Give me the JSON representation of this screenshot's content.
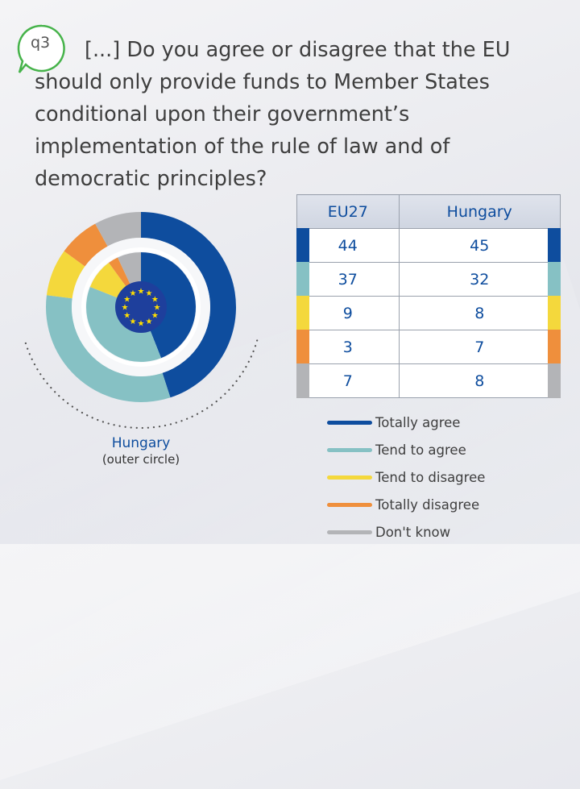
{
  "question": {
    "badge": "q3",
    "text": "[...] Do you agree or disagree that the EU should only provide funds to Member States conditional upon their government’s implementation of the rule of law and of democratic principles?"
  },
  "caption": {
    "country": "Hungary",
    "note": "(outer circle)"
  },
  "table": {
    "headers": [
      "EU27",
      "Hungary"
    ],
    "rows": [
      {
        "eu27": "44",
        "hungary": "45"
      },
      {
        "eu27": "37",
        "hungary": "32"
      },
      {
        "eu27": "9",
        "hungary": "8"
      },
      {
        "eu27": "3",
        "hungary": "7"
      },
      {
        "eu27": "7",
        "hungary": "8"
      }
    ]
  },
  "legend": [
    "Totally agree",
    "Tend to agree",
    "Tend to disagree",
    "Totally disagree",
    "Don't know"
  ],
  "colors": {
    "totally_agree": "#0e4d9e",
    "tend_to_agree": "#86c1c4",
    "tend_to_disagree": "#f4d83c",
    "totally_disagree": "#ef8f3c",
    "dont_know": "#b3b4b7",
    "eu_flag": "#1e3f9c",
    "eu_star": "#ffde00",
    "bubble": "#46b34a"
  },
  "chart_data": {
    "type": "pie",
    "variant": "double-donut",
    "categories": [
      "Totally agree",
      "Tend to agree",
      "Tend to disagree",
      "Totally disagree",
      "Don't know"
    ],
    "series": [
      {
        "name": "EU27",
        "ring": "inner",
        "values": [
          44,
          37,
          9,
          3,
          7
        ]
      },
      {
        "name": "Hungary",
        "ring": "outer",
        "values": [
          45,
          32,
          8,
          7,
          8
        ]
      }
    ]
  }
}
